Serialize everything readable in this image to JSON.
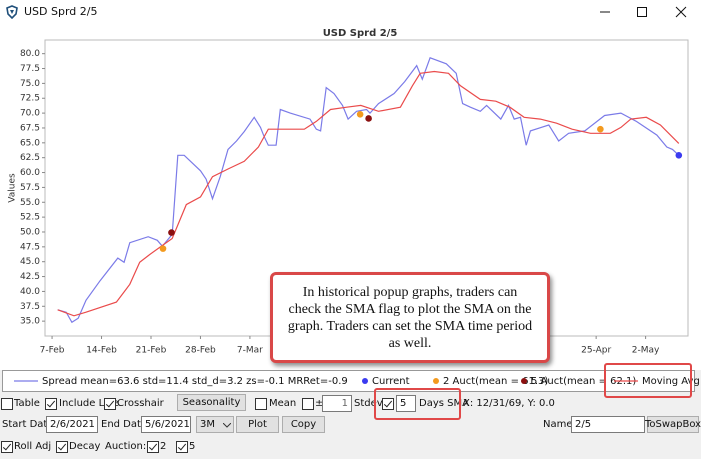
{
  "window": {
    "title": "USD Sprd 2/5"
  },
  "chart_data": {
    "type": "line",
    "title": "USD Sprd 2/5",
    "y_label": "Values",
    "xlim": [
      37,
      128
    ],
    "ylim": [
      32.5,
      82.3
    ],
    "xticks": [
      {
        "value": 38,
        "label": "7-Feb"
      },
      {
        "value": 45,
        "label": "14-Feb"
      },
      {
        "value": 52,
        "label": "21-Feb"
      },
      {
        "value": 59,
        "label": "28-Feb"
      },
      {
        "value": 66,
        "label": "7-Mar"
      },
      {
        "value": 115,
        "label": "25-Apr"
      },
      {
        "value": 122,
        "label": "2-May"
      }
    ],
    "yticks": [
      {
        "value": 35,
        "label": "35.0"
      },
      37.5,
      {
        "value": 40,
        "label": "40.0"
      },
      42.5,
      {
        "value": 45,
        "label": "45.0"
      },
      47.5,
      {
        "value": 50,
        "label": "50.0"
      },
      52.5,
      {
        "value": 55,
        "label": "55.0"
      },
      57.5,
      {
        "value": 60,
        "label": "60.0"
      },
      62.5,
      {
        "value": 65,
        "label": "65.0"
      },
      67.5,
      {
        "value": 70,
        "label": "70.0"
      },
      72.5,
      {
        "value": 75,
        "label": "75.0"
      },
      77.5,
      {
        "value": 80,
        "label": "80.0"
      }
    ],
    "grid": false,
    "series": [
      {
        "name": "Spread  mean=63.6  std=11.4  std_d=3.2  zs=-0.1  MRRet=-0.9",
        "color": "#7b7be8",
        "style": "line",
        "x": [
          38.8,
          40,
          40.8,
          41.7,
          42.8,
          44.8,
          47.3,
          48.2,
          49,
          51.6,
          52.9,
          53.6,
          55,
          55.8,
          56.7,
          59,
          59.8,
          60.7,
          61.8,
          62.9,
          64.1,
          65.2,
          66.6,
          67.5,
          68,
          68.6,
          69.7,
          70.3,
          71.7,
          74.5,
          75.4,
          76,
          76.8,
          77.9,
          79.1,
          79.9,
          81.1,
          82.5,
          83,
          84.2,
          86.4,
          87.9,
          89.6,
          90.4,
          91.5,
          93.8,
          95.2,
          96.1,
          97.2,
          98.6,
          99.5,
          101.5,
          102.6,
          103.4,
          104.3,
          105.1,
          105.7,
          108.3,
          109.7,
          111.1,
          113.4,
          116.2,
          118.5,
          120.7,
          123.6,
          125,
          125.8,
          126.7
        ],
        "values": [
          36.9,
          36.5,
          34.8,
          35.5,
          38.5,
          41.8,
          45.6,
          44.9,
          48.2,
          49.2,
          48.6,
          47.6,
          49.6,
          62.9,
          62.9,
          60.3,
          58.9,
          55.6,
          59.3,
          63.9,
          65.3,
          66.9,
          69.3,
          67.6,
          66.1,
          64.6,
          64.6,
          70.6,
          70,
          69,
          67.3,
          67,
          74.3,
          73.3,
          71.3,
          69,
          70.3,
          70.6,
          70,
          71.6,
          73.3,
          75.3,
          78,
          75.7,
          79.3,
          78.3,
          76.7,
          71.6,
          71,
          70.3,
          71.3,
          69,
          71.3,
          69,
          69.3,
          64.6,
          67,
          68,
          65.3,
          66.6,
          67,
          69.6,
          70,
          68.6,
          66.3,
          64.3,
          63.9,
          62.9
        ]
      },
      {
        "name": "Current",
        "color": "#3b3bf0",
        "style": "points",
        "x": [
          126.7
        ],
        "values": [
          62.9
        ]
      },
      {
        "name": "2 Auct(mean = 61.3)",
        "color": "#f39a1e",
        "style": "points",
        "x": [
          53.7,
          81.6,
          115.6
        ],
        "values": [
          47.2,
          69.8,
          67.3
        ]
      },
      {
        "name": "5 Auct(mean = 62.1)",
        "color": "#8b1010",
        "style": "points",
        "x": [
          54.9,
          82.8
        ],
        "values": [
          49.9,
          69.1
        ]
      },
      {
        "name": "Moving Avg",
        "color": "#ea4b4b",
        "style": "line",
        "x": [
          38.8,
          41.1,
          42.8,
          47.1,
          49,
          50.4,
          51.8,
          53.8,
          55,
          57,
          59,
          60.7,
          62.9,
          65.2,
          67.2,
          68.6,
          70.6,
          73.7,
          75.4,
          77.4,
          79.7,
          81.7,
          84.2,
          87.3,
          89,
          90.1,
          92.1,
          94.1,
          95.8,
          98.6,
          100.8,
          102.8,
          104.8,
          107.1,
          109.4,
          111.6,
          114.2,
          117,
          118.5,
          119.9,
          122.1,
          124.1,
          126.7
        ],
        "values": [
          36.9,
          35.9,
          36.5,
          38.2,
          41.2,
          44.9,
          46.2,
          47.9,
          48.9,
          54.6,
          55.9,
          59.3,
          60.6,
          61.9,
          64.3,
          67.3,
          67.3,
          67.3,
          68.6,
          70.6,
          71,
          71.3,
          70.3,
          71,
          74.6,
          76.7,
          77,
          76.7,
          74.6,
          72.3,
          72,
          71,
          69.3,
          69,
          68.3,
          67.3,
          66.6,
          66.6,
          67.6,
          69,
          69.3,
          68,
          64.9
        ]
      }
    ]
  },
  "callout": {
    "text": "In historical popup graphs, traders can check the SMA flag to plot the SMA on the graph. Traders can set the SMA time period as well."
  },
  "controls": {
    "table": "Table",
    "include_live": "Include Live",
    "crosshair": "Crosshair",
    "seasonality": "Seasonality",
    "mean": "Mean",
    "plus_minus": "±",
    "stdev_value": "1",
    "stdev": "Stdev",
    "sma_value": "5",
    "days_sma": "Days SMA",
    "status": "X: 12/31/69, Y: 0.0",
    "start_date_label": "Start Date",
    "start_date": "2/6/2021",
    "end_date_label": "End Date",
    "end_date": "5/6/2021",
    "period": "3M",
    "plot": "Plot",
    "copy": "Copy",
    "name_label": "Name:",
    "name": "2/5",
    "to_swap_box": "ToSwapBox",
    "roll_adj": "Roll Adj",
    "decay": "Decay",
    "auction_label": "Auction:",
    "auction_2": "2",
    "auction_5": "5"
  }
}
